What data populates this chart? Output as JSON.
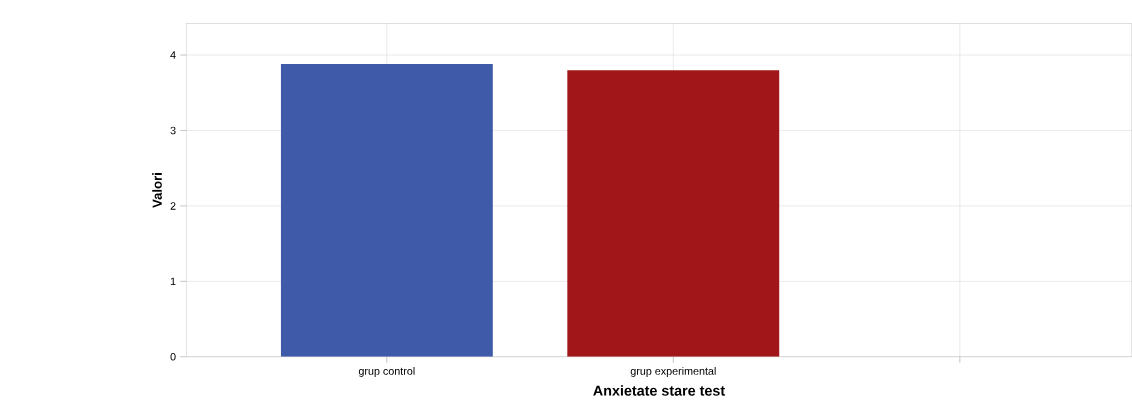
{
  "chart_data": {
    "type": "bar",
    "xlabel": "Anxietate stare test",
    "ylabel": "Valori",
    "categories": [
      "grup control",
      "grup experimental",
      null
    ],
    "values": [
      3.88,
      3.8,
      null
    ],
    "colors": [
      "#3f5aa8",
      "#a01619",
      "#888888"
    ],
    "ylim": [
      0,
      4.42
    ],
    "yticks": [
      0,
      1,
      2,
      3,
      4
    ],
    "grid": true
  }
}
